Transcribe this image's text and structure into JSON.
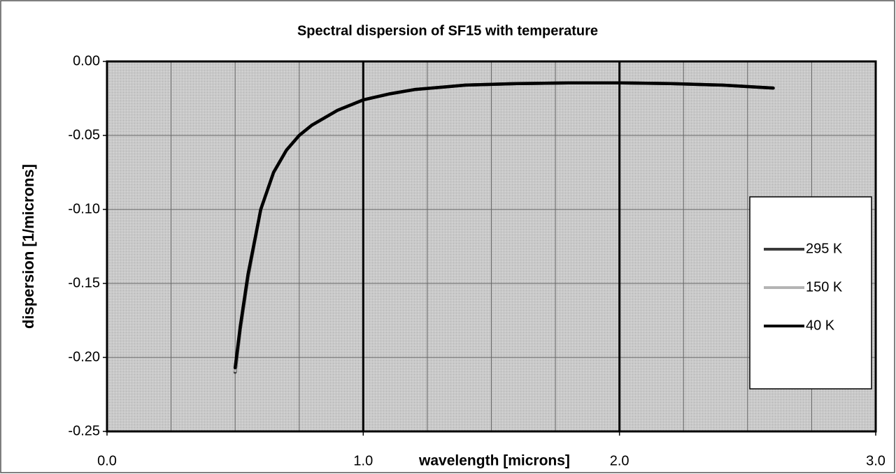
{
  "chart_data": {
    "type": "line",
    "title": "Spectral dispersion of SF15 with temperature",
    "x_label": "wavelength [microns]",
    "y_label": "dispersion [1/microns]",
    "x": [
      0.5,
      0.52,
      0.55,
      0.6,
      0.65,
      0.7,
      0.75,
      0.8,
      0.9,
      1.0,
      1.1,
      1.2,
      1.4,
      1.6,
      1.8,
      2.0,
      2.2,
      2.4,
      2.6
    ],
    "series": [
      {
        "name": "295 K",
        "color": "#3a3a3a",
        "values": [
          -0.21,
          -0.181,
          -0.146,
          -0.1,
          -0.075,
          -0.06,
          -0.05,
          -0.043,
          -0.033,
          -0.026,
          -0.022,
          -0.019,
          -0.016,
          -0.015,
          -0.0145,
          -0.0145,
          -0.015,
          -0.016,
          -0.018
        ]
      },
      {
        "name": "150 K",
        "color": "#b4b4b4",
        "values": [
          -0.209,
          -0.18,
          -0.145,
          -0.1,
          -0.075,
          -0.06,
          -0.05,
          -0.043,
          -0.033,
          -0.026,
          -0.022,
          -0.019,
          -0.016,
          -0.015,
          -0.0145,
          -0.0145,
          -0.015,
          -0.016,
          -0.018
        ]
      },
      {
        "name": "40 K",
        "color": "#000000",
        "values": [
          -0.207,
          -0.179,
          -0.144,
          -0.1,
          -0.075,
          -0.06,
          -0.05,
          -0.043,
          -0.033,
          -0.026,
          -0.022,
          -0.019,
          -0.016,
          -0.015,
          -0.0145,
          -0.0145,
          -0.015,
          -0.016,
          -0.018
        ]
      }
    ],
    "xlim": [
      0,
      3
    ],
    "ylim": [
      -0.25,
      0
    ],
    "xticks": [
      {
        "value": 0,
        "label": "0.0"
      },
      {
        "value": 1,
        "label": "1.0"
      },
      {
        "value": 2,
        "label": "2.0"
      },
      {
        "value": 3,
        "label": "3.0"
      }
    ],
    "xminorticks": [
      0.25,
      0.5,
      0.75,
      1.25,
      1.5,
      1.75,
      2.25,
      2.5,
      2.75
    ],
    "yticks": [
      {
        "value": -0.25,
        "label": "-0.25"
      },
      {
        "value": -0.2,
        "label": "-0.20"
      },
      {
        "value": -0.15,
        "label": "-0.15"
      },
      {
        "value": -0.1,
        "label": "-0.10"
      },
      {
        "value": -0.05,
        "label": "-0.05"
      },
      {
        "value": 0,
        "label": "0.00"
      }
    ],
    "grid": true,
    "legend": "right"
  }
}
